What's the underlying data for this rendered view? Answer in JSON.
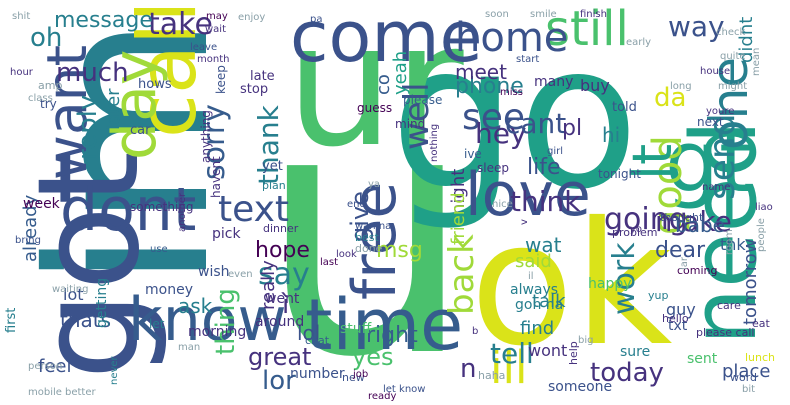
{
  "palette": {
    "purple": "#46327e",
    "indigo": "#3b528b",
    "blue": "#365c8d",
    "teal": "#277f8e",
    "cyan": "#1fa088",
    "green": "#4ac16d",
    "lime": "#a0da39",
    "yellow": "#dae319",
    "brightyellow": "#fde725",
    "dark": "#440154",
    "grey": "#8aa0a8"
  },
  "words": [
    {
      "text": "u",
      "color": "green",
      "weight": 1.0
    },
    {
      "text": "im",
      "color": "teal",
      "weight": 0.9
    },
    {
      "text": "go",
      "color": "cyan",
      "weight": 0.88
    },
    {
      "text": "got",
      "color": "indigo",
      "weight": 0.85
    },
    {
      "text": "ur",
      "color": "green",
      "weight": 0.82
    },
    {
      "text": "ok",
      "color": "yellow",
      "weight": 0.8
    },
    {
      "text": "gt",
      "color": "cyan",
      "weight": 0.55
    },
    {
      "text": "come",
      "color": "indigo",
      "weight": 0.5
    },
    {
      "text": "need",
      "color": "cyan",
      "weight": 0.5
    },
    {
      "text": "call",
      "color": "yellow",
      "weight": 0.45
    },
    {
      "text": "time",
      "color": "blue",
      "weight": 0.45
    },
    {
      "text": "know",
      "color": "blue",
      "weight": 0.42
    },
    {
      "text": "dont",
      "color": "indigo",
      "weight": 0.4
    },
    {
      "text": "love",
      "color": "indigo",
      "weight": 0.4
    },
    {
      "text": "day",
      "color": "lime",
      "weight": 0.38
    },
    {
      "text": "free",
      "color": "indigo",
      "weight": 0.36
    },
    {
      "text": "want",
      "color": "indigo",
      "weight": 0.34
    },
    {
      "text": "one",
      "color": "teal",
      "weight": 0.32
    },
    {
      "text": "still",
      "color": "green",
      "weight": 0.3
    },
    {
      "text": "ill",
      "color": "yellow",
      "weight": 0.28
    },
    {
      "text": "home",
      "color": "indigo",
      "weight": 0.26
    },
    {
      "text": "good",
      "color": "lime",
      "weight": 0.26
    },
    {
      "text": "text",
      "color": "indigo",
      "weight": 0.25
    },
    {
      "text": "send",
      "color": "teal",
      "weight": 0.25
    },
    {
      "text": "lt",
      "color": "cyan",
      "weight": 0.25
    },
    {
      "text": "see",
      "color": "indigo",
      "weight": 0.22
    },
    {
      "text": "well",
      "color": "indigo",
      "weight": 0.22
    },
    {
      "text": "back",
      "color": "lime",
      "weight": 0.22
    },
    {
      "text": "going",
      "color": "purple",
      "weight": 0.22
    },
    {
      "text": "tell",
      "color": "teal",
      "weight": 0.2
    },
    {
      "text": "today",
      "color": "purple",
      "weight": 0.2
    },
    {
      "text": "sorry",
      "color": "blue",
      "weight": 0.18
    },
    {
      "text": "take",
      "color": "purple",
      "weight": 0.18
    },
    {
      "text": "think",
      "color": "purple",
      "weight": 0.18
    },
    {
      "text": "hey",
      "color": "purple",
      "weight": 0.18
    },
    {
      "text": "say",
      "color": "teal",
      "weight": 0.17
    },
    {
      "text": "make",
      "color": "purple",
      "weight": 0.16
    },
    {
      "text": "way",
      "color": "indigo",
      "weight": 0.16
    },
    {
      "text": "much",
      "color": "purple",
      "weight": 0.16
    },
    {
      "text": "cant",
      "color": "indigo",
      "weight": 0.15
    },
    {
      "text": "da",
      "color": "yellow",
      "weight": 0.15
    },
    {
      "text": "thank",
      "color": "teal",
      "weight": 0.15
    },
    {
      "text": "give",
      "color": "indigo",
      "weight": 0.15
    },
    {
      "text": "work",
      "color": "teal",
      "weight": 0.15
    },
    {
      "text": "reply",
      "color": "teal",
      "weight": 0.14
    },
    {
      "text": "oh",
      "color": "teal",
      "weight": 0.14
    },
    {
      "text": "thing",
      "color": "green",
      "weight": 0.14
    },
    {
      "text": "lor",
      "color": "blue",
      "weight": 0.14
    },
    {
      "text": "great",
      "color": "purple",
      "weight": 0.13
    },
    {
      "text": "right",
      "color": "blue",
      "weight": 0.13
    },
    {
      "text": "n",
      "color": "purple",
      "weight": 0.13
    },
    {
      "text": "phone",
      "color": "teal",
      "weight": 0.12
    },
    {
      "text": "msg",
      "color": "lime",
      "weight": 0.12
    },
    {
      "text": "yes",
      "color": "green",
      "weight": 0.12
    },
    {
      "text": "life",
      "color": "indigo",
      "weight": 0.12
    },
    {
      "text": "hope",
      "color": "dark",
      "weight": 0.11
    },
    {
      "text": "didnt",
      "color": "teal",
      "weight": 0.11
    },
    {
      "text": "message",
      "color": "teal",
      "weight": 0.11
    },
    {
      "text": "dear",
      "color": "indigo",
      "weight": 0.11
    },
    {
      "text": "babe",
      "color": "blue",
      "weight": 0.11
    },
    {
      "text": "pl",
      "color": "purple",
      "weight": 0.11
    },
    {
      "text": "hi",
      "color": "teal",
      "weight": 0.11
    },
    {
      "text": "lol",
      "color": "indigo",
      "weight": 0.1
    },
    {
      "text": "ask",
      "color": "teal",
      "weight": 0.1
    },
    {
      "text": "meet",
      "color": "purple",
      "weight": 0.1
    },
    {
      "text": "said",
      "color": "lime",
      "weight": 0.1
    },
    {
      "text": "thats",
      "color": "indigo",
      "weight": 0.1
    },
    {
      "text": "night",
      "color": "purple",
      "weight": 0.1
    },
    {
      "text": "friend",
      "color": "lime",
      "weight": 0.1
    },
    {
      "text": "really",
      "color": "purple",
      "weight": 0.1
    },
    {
      "text": "wat",
      "color": "teal",
      "weight": 0.1
    },
    {
      "text": "already",
      "color": "blue",
      "weight": 0.09
    },
    {
      "text": "tomorrow",
      "color": "indigo",
      "weight": 0.09
    },
    {
      "text": "later",
      "color": "teal",
      "weight": 0.09
    },
    {
      "text": "yeah",
      "color": "cyan",
      "weight": 0.09
    },
    {
      "text": "co",
      "color": "blue",
      "weight": 0.09
    },
    {
      "text": "thk",
      "color": "blue",
      "weight": 0.09
    },
    {
      "text": "ì",
      "color": "purple",
      "weight": 0.09
    },
    {
      "text": "find",
      "color": "teal",
      "weight": 0.08
    },
    {
      "text": "talk",
      "color": "teal",
      "weight": 0.08
    },
    {
      "text": "wont",
      "color": "purple",
      "weight": 0.08
    },
    {
      "text": "place",
      "color": "indigo",
      "weight": 0.08
    },
    {
      "text": "feel",
      "color": "indigo",
      "weight": 0.08
    },
    {
      "text": "buy",
      "color": "purple",
      "weight": 0.08
    },
    {
      "text": "many",
      "color": "purple",
      "weight": 0.07
    },
    {
      "text": "always",
      "color": "teal",
      "weight": 0.07
    },
    {
      "text": "guy",
      "color": "indigo",
      "weight": 0.07
    },
    {
      "text": "happy",
      "color": "green",
      "weight": 0.07
    },
    {
      "text": "lot",
      "color": "indigo",
      "weight": 0.07
    },
    {
      "text": "went",
      "color": "purple",
      "weight": 0.07
    },
    {
      "text": "around",
      "color": "purple",
      "weight": 0.07
    },
    {
      "text": "week",
      "color": "dark",
      "weight": 0.06
    },
    {
      "text": "stuff",
      "color": "green",
      "weight": 0.06
    },
    {
      "text": "wish",
      "color": "indigo",
      "weight": 0.06
    },
    {
      "text": "number",
      "color": "indigo",
      "weight": 0.06
    },
    {
      "text": "sure",
      "color": "teal",
      "weight": 0.06
    },
    {
      "text": "txt",
      "color": "indigo",
      "weight": 0.06
    },
    {
      "text": "someone",
      "color": "indigo",
      "weight": 0.06
    },
    {
      "text": "sent",
      "color": "green",
      "weight": 0.06
    },
    {
      "text": "gon na",
      "color": "teal",
      "weight": 0.06
    },
    {
      "text": "pick",
      "color": "purple",
      "weight": 0.06
    },
    {
      "text": "money",
      "color": "indigo",
      "weight": 0.06
    },
    {
      "text": "getting",
      "color": "teal",
      "weight": 0.06
    },
    {
      "text": "morning",
      "color": "purple",
      "weight": 0.06
    },
    {
      "text": "first",
      "color": "teal",
      "weight": 0.05
    },
    {
      "text": "let",
      "color": "teal",
      "weight": 0.05
    },
    {
      "text": "told",
      "color": "indigo",
      "weight": 0.05
    },
    {
      "text": "mind",
      "color": "purple",
      "weight": 0.05
    },
    {
      "text": "late",
      "color": "purple",
      "weight": 0.05
    },
    {
      "text": "stop",
      "color": "purple",
      "weight": 0.05
    },
    {
      "text": "hows",
      "color": "indigo",
      "weight": 0.05
    },
    {
      "text": "car",
      "color": "indigo",
      "weight": 0.05
    },
    {
      "text": "keep",
      "color": "indigo",
      "weight": 0.05
    },
    {
      "text": "sleep",
      "color": "purple",
      "weight": 0.05
    },
    {
      "text": "ive",
      "color": "blue",
      "weight": 0.05
    },
    {
      "text": "yet",
      "color": "indigo",
      "weight": 0.05
    },
    {
      "text": "anything",
      "color": "purple",
      "weight": 0.05
    },
    {
      "text": "havent",
      "color": "purple",
      "weight": 0.05
    },
    {
      "text": "something",
      "color": "purple",
      "weight": 0.05
    },
    {
      "text": "amp",
      "color": "grey",
      "weight": 0.04
    },
    {
      "text": "try",
      "color": "indigo",
      "weight": 0.04
    },
    {
      "text": "next",
      "color": "indigo",
      "weight": 0.04
    },
    {
      "text": "tonight",
      "color": "indigo",
      "weight": 0.04
    },
    {
      "text": "please",
      "color": "blue",
      "weight": 0.04
    },
    {
      "text": "guess",
      "color": "dark",
      "weight": 0.04
    },
    {
      "text": "plan",
      "color": "teal",
      "weight": 0.04
    },
    {
      "text": "dinner",
      "color": "purple",
      "weight": 0.04
    },
    {
      "text": "best",
      "color": "teal",
      "weight": 0.04
    },
    {
      "text": "done",
      "color": "grey",
      "weight": 0.04
    },
    {
      "text": "yup",
      "color": "teal",
      "weight": 0.04
    },
    {
      "text": "hello",
      "color": "purple",
      "weight": 0.04
    },
    {
      "text": "problem",
      "color": "purple",
      "weight": 0.04
    },
    {
      "text": "thought",
      "color": "indigo",
      "weight": 0.04
    },
    {
      "text": "lunch",
      "color": "yellow",
      "weight": 0.04
    },
    {
      "text": "please call",
      "color": "purple",
      "weight": 0.04
    },
    {
      "text": "coming",
      "color": "dark",
      "weight": 0.04
    },
    {
      "text": "care",
      "color": "purple",
      "weight": 0.04
    },
    {
      "text": "eat",
      "color": "purple",
      "weight": 0.04
    },
    {
      "text": "word",
      "color": "indigo",
      "weight": 0.04
    },
    {
      "text": "help",
      "color": "purple",
      "weight": 0.04
    },
    {
      "text": "haha",
      "color": "grey",
      "weight": 0.04
    },
    {
      "text": "new",
      "color": "indigo",
      "weight": 0.04
    },
    {
      "text": "chat",
      "color": "blue",
      "weight": 0.04
    },
    {
      "text": "ready",
      "color": "dark",
      "weight": 0.03
    },
    {
      "text": "job",
      "color": "dark",
      "weight": 0.03
    },
    {
      "text": "let know",
      "color": "indigo",
      "weight": 0.03
    },
    {
      "text": "person",
      "color": "grey",
      "weight": 0.03
    },
    {
      "text": "mobile",
      "color": "grey",
      "weight": 0.03
    },
    {
      "text": "better",
      "color": "grey",
      "weight": 0.03
    },
    {
      "text": "never",
      "color": "teal",
      "weight": 0.03
    },
    {
      "text": "waiting",
      "color": "grey",
      "weight": 0.03
    },
    {
      "text": "use",
      "color": "blue",
      "weight": 0.03
    },
    {
      "text": "man",
      "color": "grey",
      "weight": 0.03
    },
    {
      "text": "even",
      "color": "grey",
      "weight": 0.03
    },
    {
      "text": "another",
      "color": "purple",
      "weight": 0.03
    },
    {
      "text": "bring",
      "color": "indigo",
      "weight": 0.03
    },
    {
      "text": "class",
      "color": "grey",
      "weight": 0.03
    },
    {
      "text": "shit",
      "color": "grey",
      "weight": 0.03
    },
    {
      "text": "hour",
      "color": "purple",
      "weight": 0.03
    },
    {
      "text": "last",
      "color": "dark",
      "weight": 0.03
    },
    {
      "text": "wan na",
      "color": "indigo",
      "weight": 0.03
    },
    {
      "text": "end",
      "color": "indigo",
      "weight": 0.03
    },
    {
      "text": "girl",
      "color": "indigo",
      "weight": 0.03
    },
    {
      "text": "nothing",
      "color": "purple",
      "weight": 0.03
    },
    {
      "text": "nice",
      "color": "grey",
      "weight": 0.03
    },
    {
      "text": "yo",
      "color": "purple",
      "weight": 0.03
    },
    {
      "text": "liao",
      "color": "purple",
      "weight": 0.03
    },
    {
      "text": "name",
      "color": "purple",
      "weight": 0.03
    },
    {
      "text": "people",
      "color": "grey",
      "weight": 0.03
    },
    {
      "text": "room",
      "color": "grey",
      "weight": 0.03
    },
    {
      "text": "quite",
      "color": "grey",
      "weight": 0.03
    },
    {
      "text": "house",
      "color": "purple",
      "weight": 0.03
    },
    {
      "text": "long",
      "color": "grey",
      "weight": 0.03
    },
    {
      "text": "early",
      "color": "grey",
      "weight": 0.03
    },
    {
      "text": "check",
      "color": "grey",
      "weight": 0.03
    },
    {
      "text": "soon",
      "color": "grey",
      "weight": 0.03
    },
    {
      "text": "smile",
      "color": "grey",
      "weight": 0.03
    },
    {
      "text": "finish",
      "color": "purple",
      "weight": 0.03
    },
    {
      "text": "month",
      "color": "purple",
      "weight": 0.03
    },
    {
      "text": "leave",
      "color": "indigo",
      "weight": 0.03
    },
    {
      "text": "start",
      "color": "indigo",
      "weight": 0.03
    },
    {
      "text": "wait",
      "color": "purple",
      "weight": 0.03
    },
    {
      "text": "enjoy",
      "color": "grey",
      "weight": 0.03
    },
    {
      "text": "miss",
      "color": "dark",
      "weight": 0.03
    },
    {
      "text": "might",
      "color": "grey",
      "weight": 0.03
    },
    {
      "text": "youre",
      "color": "purple",
      "weight": 0.03
    },
    {
      "text": "pa",
      "color": "indigo",
      "weight": 0.03
    },
    {
      "text": "ya",
      "color": "grey",
      "weight": 0.03
    },
    {
      "text": "b",
      "color": "purple",
      "weight": 0.03
    },
    {
      "text": "v",
      "color": "purple",
      "weight": 0.03
    },
    {
      "text": "il",
      "color": "grey",
      "weight": 0.03
    },
    {
      "text": "lar",
      "color": "grey",
      "weight": 0.03
    },
    {
      "text": "big",
      "color": "grey",
      "weight": 0.03
    },
    {
      "text": "look",
      "color": "purple",
      "weight": 0.03
    },
    {
      "text": "may",
      "color": "dark",
      "weight": 0.03
    },
    {
      "text": "bit",
      "color": "grey",
      "weight": 0.03
    },
    {
      "text": "mean",
      "color": "grey",
      "weight": 0.03
    },
    {
      "text": "cone",
      "color": "grey",
      "weight": 0.03
    }
  ]
}
